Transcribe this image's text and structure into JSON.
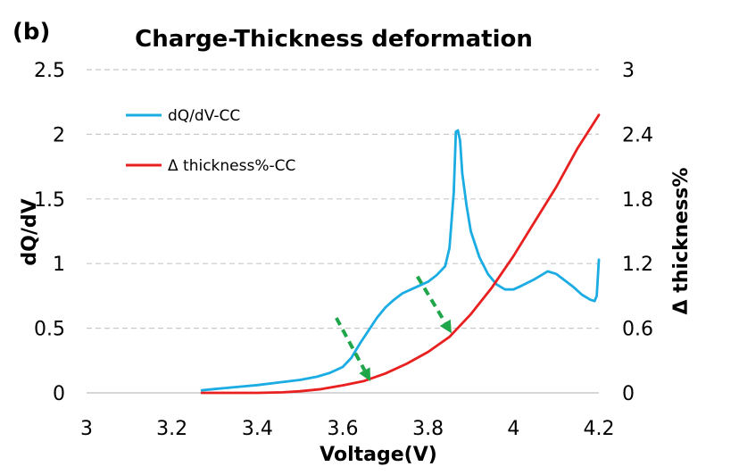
{
  "panel_label": "(b)",
  "chart_data": {
    "type": "line",
    "title": "Charge-Thickness deformation",
    "xlabel": "Voltage(V)",
    "ylabel": "dQ/dV",
    "y2label": "Δ thickness%",
    "xlim": [
      3,
      4.2
    ],
    "ylim": [
      0,
      2.5
    ],
    "y2lim": [
      0,
      3
    ],
    "x_ticks": [
      "3",
      "3.2",
      "3.4",
      "3.6",
      "3.8",
      "4",
      "4.2"
    ],
    "y_ticks": [
      "0",
      "0.5",
      "1",
      "1.5",
      "2",
      "2.5"
    ],
    "y2_ticks": [
      "0",
      "0.6",
      "1.2",
      "1.8",
      "2.4",
      "3"
    ],
    "grid": "horizontal dashed",
    "legend_position": "top-left",
    "series": [
      {
        "name": "dQ/dV-CC",
        "axis": "left",
        "color": "#1AACE3",
        "points": [
          [
            3.27,
            0.02
          ],
          [
            3.3,
            0.03
          ],
          [
            3.35,
            0.045
          ],
          [
            3.4,
            0.06
          ],
          [
            3.45,
            0.08
          ],
          [
            3.5,
            0.1
          ],
          [
            3.54,
            0.125
          ],
          [
            3.57,
            0.155
          ],
          [
            3.6,
            0.2
          ],
          [
            3.62,
            0.27
          ],
          [
            3.64,
            0.38
          ],
          [
            3.66,
            0.48
          ],
          [
            3.68,
            0.58
          ],
          [
            3.7,
            0.66
          ],
          [
            3.72,
            0.72
          ],
          [
            3.74,
            0.77
          ],
          [
            3.76,
            0.8
          ],
          [
            3.78,
            0.83
          ],
          [
            3.8,
            0.86
          ],
          [
            3.82,
            0.91
          ],
          [
            3.84,
            0.98
          ],
          [
            3.85,
            1.12
          ],
          [
            3.86,
            1.55
          ],
          [
            3.865,
            2.02
          ],
          [
            3.87,
            2.03
          ],
          [
            3.875,
            1.95
          ],
          [
            3.88,
            1.7
          ],
          [
            3.89,
            1.45
          ],
          [
            3.9,
            1.25
          ],
          [
            3.92,
            1.05
          ],
          [
            3.94,
            0.92
          ],
          [
            3.96,
            0.84
          ],
          [
            3.98,
            0.8
          ],
          [
            4.0,
            0.8
          ],
          [
            4.02,
            0.83
          ],
          [
            4.05,
            0.88
          ],
          [
            4.08,
            0.94
          ],
          [
            4.1,
            0.92
          ],
          [
            4.12,
            0.87
          ],
          [
            4.14,
            0.82
          ],
          [
            4.16,
            0.76
          ],
          [
            4.18,
            0.72
          ],
          [
            4.19,
            0.71
          ],
          [
            4.195,
            0.75
          ],
          [
            4.2,
            1.03
          ]
        ]
      },
      {
        "name": "Δ thickness%-CC",
        "axis": "right",
        "color": "#E8201F",
        "points": [
          [
            3.27,
            0
          ],
          [
            3.4,
            0
          ],
          [
            3.46,
            0.005
          ],
          [
            3.5,
            0.015
          ],
          [
            3.55,
            0.035
          ],
          [
            3.6,
            0.07
          ],
          [
            3.65,
            0.11
          ],
          [
            3.7,
            0.18
          ],
          [
            3.75,
            0.27
          ],
          [
            3.8,
            0.38
          ],
          [
            3.85,
            0.52
          ],
          [
            3.9,
            0.73
          ],
          [
            3.95,
            0.98
          ],
          [
            4.0,
            1.27
          ],
          [
            4.05,
            1.59
          ],
          [
            4.1,
            1.91
          ],
          [
            4.15,
            2.27
          ],
          [
            4.2,
            2.58
          ]
        ]
      }
    ],
    "annotations": [
      {
        "type": "dashed-arrow",
        "color": "#1FA64A",
        "from": [
          3.585,
          0.58
        ],
        "to": [
          3.665,
          0.09
        ]
      },
      {
        "type": "dashed-arrow",
        "color": "#1FA64A",
        "from": [
          3.775,
          0.9
        ],
        "to": [
          3.855,
          0.46
        ]
      }
    ]
  }
}
